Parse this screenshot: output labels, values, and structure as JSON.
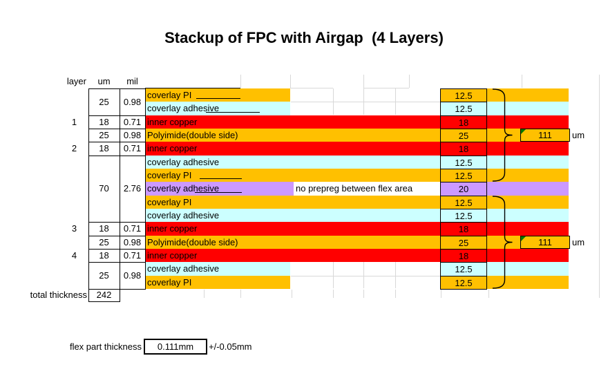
{
  "title": "Stackup of FPC with Airgap  (4 Layers)",
  "headers": {
    "layer": "layer",
    "um": "um",
    "mil": "mil"
  },
  "colors": {
    "orange": "#FFC000",
    "red": "#FF0000",
    "cyan": "#CCFFFF",
    "purple": "#CC99FF",
    "comment_green": "#007a00",
    "gridline": "#d8d8d8"
  },
  "rows": [
    {
      "material": "coverlay PI",
      "color": "orange",
      "value": "12.5",
      "gap": true,
      "underline": true
    },
    {
      "material": "coverlay adhesive",
      "color": "cyan",
      "value": "12.5",
      "gap": true,
      "underline": true
    },
    {
      "layer": "1",
      "um": "18",
      "mil": "0.71",
      "material": "inner copper",
      "color": "red",
      "value": "18"
    },
    {
      "um": "25",
      "mil": "0.98",
      "material": "Polyimide(double side)",
      "color": "orange",
      "value": "25"
    },
    {
      "layer": "2",
      "um": "18",
      "mil": "0.71",
      "material": "inner copper",
      "color": "red",
      "value": "18"
    },
    {
      "material": "coverlay adhesive",
      "color": "cyan",
      "value": "12.5"
    },
    {
      "material": "coverlay PI",
      "color": "orange",
      "value": "12.5",
      "underline": true
    },
    {
      "material": "coverlay adhesive",
      "color": "purple",
      "value": "20",
      "note": "no prepreg between flex area",
      "underline": true
    },
    {
      "material": "coverlay PI",
      "color": "orange",
      "value": "12.5"
    },
    {
      "material": "coverlay adhesive",
      "color": "cyan",
      "value": "12.5"
    },
    {
      "layer": "3",
      "um": "18",
      "mil": "0.71",
      "material": "inner copper",
      "color": "red",
      "value": "18"
    },
    {
      "um": "25",
      "mil": "0.98",
      "material": "Polyimide(double side)",
      "color": "orange",
      "value": "25"
    },
    {
      "layer": "4",
      "um": "18",
      "mil": "0.71",
      "material": "inner copper",
      "color": "red",
      "value": "18"
    },
    {
      "material": "coverlay adhesive",
      "color": "cyan",
      "value": "12.5",
      "gap": true
    },
    {
      "material": "coverlay PI",
      "color": "orange",
      "value": "12.5",
      "gap": true
    }
  ],
  "left_cells": [
    {
      "rows": [
        0,
        1
      ],
      "um": "25",
      "mil": "0.98"
    },
    {
      "rows": [
        2,
        2
      ],
      "um": "18",
      "mil": "0.71"
    },
    {
      "rows": [
        3,
        3
      ],
      "um": "25",
      "mil": "0.98"
    },
    {
      "rows": [
        4,
        4
      ],
      "um": "18",
      "mil": "0.71"
    },
    {
      "rows": [
        5,
        9
      ],
      "um": "70",
      "mil": "2.76"
    },
    {
      "rows": [
        10,
        10
      ],
      "um": "18",
      "mil": "0.71"
    },
    {
      "rows": [
        11,
        11
      ],
      "um": "25",
      "mil": "0.98"
    },
    {
      "rows": [
        12,
        12
      ],
      "um": "18",
      "mil": "0.71"
    },
    {
      "rows": [
        13,
        14
      ],
      "um": "25",
      "mil": "0.98"
    }
  ],
  "braces": [
    {
      "rows": [
        0,
        6
      ],
      "tip_row": 3,
      "value": "111",
      "unit": "um"
    },
    {
      "rows": [
        8,
        14
      ],
      "tip_row": 11,
      "value": "111",
      "unit": "um"
    }
  ],
  "total": {
    "label": "total thickness",
    "value": "242"
  },
  "footer": {
    "label": "flex part thickness",
    "value": "0.111mm",
    "tolerance": "+/-0.05mm"
  }
}
